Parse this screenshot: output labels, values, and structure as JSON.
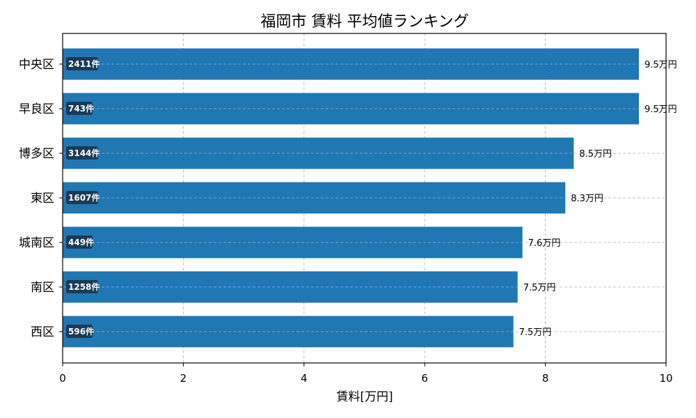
{
  "chart_data": {
    "type": "bar",
    "orientation": "horizontal",
    "title": "福岡市 賃料 平均値ランキング",
    "xlabel": "賃料[万円]",
    "ylabel": "",
    "xlim": [
      0,
      10
    ],
    "xticks": [
      0,
      2,
      4,
      6,
      8,
      10
    ],
    "grid": true,
    "categories": [
      "中央区",
      "早良区",
      "博多区",
      "東区",
      "城南区",
      "南区",
      "西区"
    ],
    "values": [
      9.55,
      9.55,
      8.47,
      8.33,
      7.62,
      7.54,
      7.47
    ],
    "value_labels": [
      "9.5万円",
      "9.5万円",
      "8.5万円",
      "8.3万円",
      "7.6万円",
      "7.5万円",
      "7.5万円"
    ],
    "count_labels": [
      "2411件",
      "743件",
      "3144件",
      "1607件",
      "449件",
      "1258件",
      "596件"
    ],
    "colors": {
      "bar": "#1f77b4",
      "badge": "#1b3a55",
      "grid": "#b0b0b0"
    }
  }
}
